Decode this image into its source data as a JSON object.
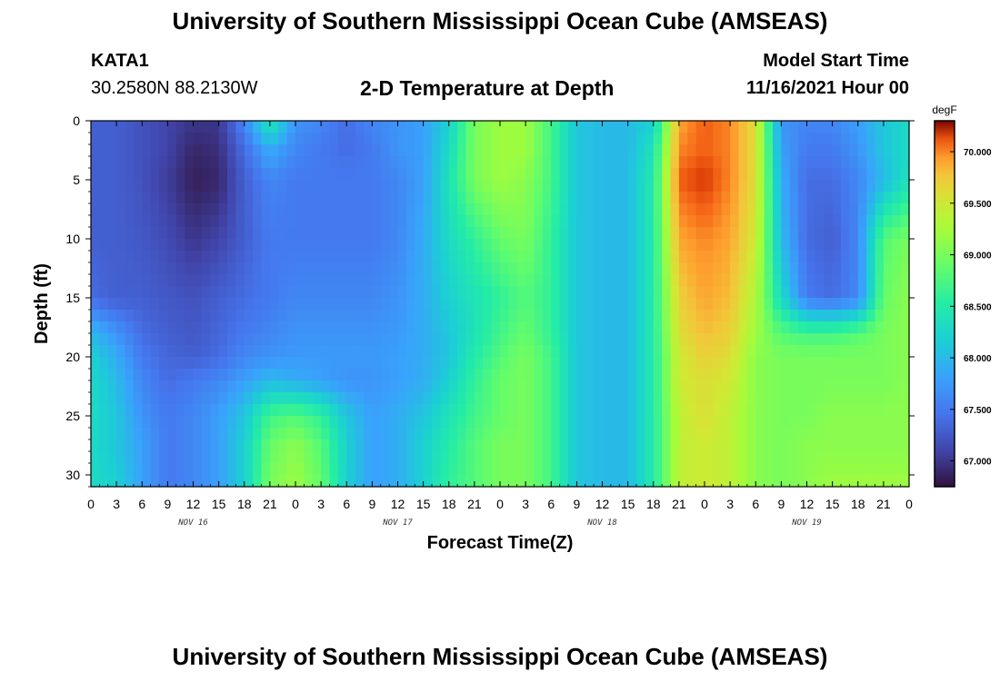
{
  "header": {
    "title": "University of Southern Mississippi Ocean Cube (AMSEAS)",
    "station": "KATA1",
    "coords": "30.2580N  88.2130W",
    "subtitle": "2-D Temperature at Depth",
    "model_start_label": "Model Start Time",
    "model_start_value": "11/16/2021 Hour 00"
  },
  "footer": {
    "title": "University of Southern Mississippi Ocean Cube (AMSEAS)"
  },
  "chart_data": {
    "type": "heatmap",
    "xlabel": "Forecast Time(Z)",
    "ylabel": "Depth (ft)",
    "x_range_hours": [
      0,
      96
    ],
    "x_tick_labels": [
      "0",
      "3",
      "6",
      "9",
      "12",
      "15",
      "18",
      "21",
      "0",
      "3",
      "6",
      "9",
      "12",
      "15",
      "18",
      "21",
      "0",
      "3",
      "6",
      "9",
      "12",
      "15",
      "18",
      "21",
      "0",
      "3",
      "6",
      "9",
      "12",
      "15",
      "18",
      "21",
      "0"
    ],
    "day_labels": [
      {
        "text": "NOV 16",
        "hour": 12
      },
      {
        "text": "NOV 17",
        "hour": 36
      },
      {
        "text": "NOV 18",
        "hour": 60
      },
      {
        "text": "NOV 19",
        "hour": 84
      }
    ],
    "ylim": [
      0,
      31
    ],
    "y_ticks": [
      0,
      5,
      10,
      15,
      20,
      25,
      30
    ],
    "y_tick_labels": [
      "0",
      "5",
      "10",
      "15",
      "20",
      "25",
      "30"
    ],
    "colorbar": {
      "unit": "degF",
      "range": [
        66.75,
        70.3
      ],
      "ticks": [
        67.0,
        67.5,
        68.0,
        68.5,
        69.0,
        69.5,
        70.0
      ],
      "tick_labels": [
        "67.000",
        "67.500",
        "68.000",
        "68.500",
        "69.000",
        "69.500",
        "70.000"
      ]
    },
    "depths_ft": [
      0,
      2.5,
      5,
      10,
      15,
      18,
      20,
      22,
      25,
      27.5,
      31
    ],
    "times_hours": [
      0,
      3,
      6,
      9,
      12,
      15,
      18,
      21,
      24,
      27,
      30,
      33,
      36,
      39,
      42,
      45,
      48,
      51,
      54,
      57,
      60,
      63,
      66,
      69,
      72,
      75,
      78,
      81,
      84,
      87,
      90,
      93,
      96
    ],
    "values_degF": [
      [
        67.3,
        67.3,
        67.2,
        67.1,
        67.0,
        67.0,
        67.6,
        68.5,
        67.7,
        67.6,
        67.4,
        67.6,
        67.7,
        67.8,
        68.2,
        69.0,
        69.2,
        69.2,
        68.7,
        68.1,
        68.0,
        68.0,
        68.2,
        69.9,
        70.1,
        70.0,
        69.6,
        67.7,
        67.6,
        67.6,
        67.8,
        68.1,
        68.3
      ],
      [
        67.3,
        67.3,
        67.2,
        67.1,
        66.9,
        66.95,
        67.4,
        67.9,
        67.6,
        67.5,
        67.4,
        67.5,
        67.7,
        67.8,
        68.3,
        69.0,
        69.2,
        69.2,
        68.7,
        68.1,
        68.0,
        68.0,
        68.4,
        70.0,
        70.1,
        70.0,
        69.6,
        67.8,
        67.5,
        67.5,
        67.7,
        68.1,
        68.3
      ],
      [
        67.3,
        67.3,
        67.2,
        67.05,
        66.85,
        66.9,
        67.3,
        67.6,
        67.5,
        67.5,
        67.5,
        67.5,
        67.6,
        67.8,
        68.4,
        69.0,
        69.2,
        69.1,
        68.7,
        68.1,
        68.0,
        68.0,
        68.5,
        70.1,
        70.2,
        70.0,
        69.6,
        67.9,
        67.4,
        67.4,
        67.6,
        68.0,
        68.4
      ],
      [
        67.3,
        67.3,
        67.25,
        67.15,
        67.0,
        67.1,
        67.3,
        67.5,
        67.5,
        67.5,
        67.5,
        67.5,
        67.6,
        67.9,
        68.3,
        68.6,
        68.9,
        69.0,
        68.6,
        68.1,
        68.0,
        68.0,
        68.5,
        69.9,
        70.0,
        69.9,
        69.5,
        68.0,
        67.4,
        67.3,
        67.6,
        68.8,
        69.0
      ],
      [
        67.4,
        67.3,
        67.3,
        67.25,
        67.2,
        67.3,
        67.4,
        67.5,
        67.6,
        67.6,
        67.6,
        67.6,
        67.7,
        67.9,
        68.2,
        68.4,
        68.6,
        68.8,
        68.6,
        68.1,
        68.0,
        68.0,
        68.5,
        69.7,
        69.9,
        69.8,
        69.3,
        68.3,
        67.5,
        67.4,
        67.6,
        68.9,
        69.1
      ],
      [
        68.0,
        67.7,
        67.4,
        67.3,
        67.25,
        67.35,
        67.5,
        67.6,
        67.7,
        67.7,
        67.7,
        67.7,
        67.75,
        67.9,
        68.1,
        68.4,
        68.7,
        68.9,
        68.6,
        68.1,
        68.0,
        68.0,
        68.5,
        69.6,
        69.8,
        69.7,
        69.2,
        68.8,
        68.7,
        68.7,
        68.8,
        69.0,
        69.1
      ],
      [
        68.2,
        67.9,
        67.5,
        67.35,
        67.3,
        67.4,
        67.6,
        67.7,
        67.75,
        67.75,
        67.75,
        67.75,
        67.8,
        67.9,
        68.1,
        68.5,
        68.8,
        69.0,
        68.7,
        68.1,
        68.0,
        68.0,
        68.5,
        69.5,
        69.7,
        69.6,
        69.1,
        69.0,
        69.0,
        69.0,
        69.0,
        69.0,
        69.1
      ],
      [
        68.3,
        68.0,
        67.6,
        67.4,
        67.5,
        67.6,
        67.8,
        68.0,
        67.9,
        67.8,
        67.7,
        67.7,
        67.8,
        67.9,
        68.2,
        68.6,
        68.9,
        69.0,
        68.7,
        68.1,
        68.0,
        68.0,
        68.5,
        69.5,
        69.6,
        69.5,
        69.1,
        69.0,
        69.0,
        69.0,
        69.0,
        69.0,
        69.1
      ],
      [
        68.3,
        68.1,
        67.7,
        67.5,
        67.6,
        67.8,
        68.1,
        68.7,
        68.8,
        68.6,
        68.1,
        67.8,
        67.9,
        68.1,
        68.4,
        68.7,
        68.9,
        69.0,
        68.7,
        68.1,
        68.0,
        68.0,
        68.5,
        69.4,
        69.6,
        69.4,
        69.1,
        69.0,
        69.0,
        69.1,
        69.1,
        69.1,
        69.1
      ],
      [
        68.3,
        68.1,
        67.8,
        67.5,
        67.6,
        67.8,
        68.2,
        68.9,
        69.1,
        68.8,
        68.2,
        67.8,
        67.9,
        68.2,
        68.5,
        68.8,
        69.0,
        69.0,
        68.7,
        68.1,
        68.0,
        68.0,
        68.5,
        69.4,
        69.5,
        69.4,
        69.1,
        69.0,
        69.1,
        69.1,
        69.1,
        69.1,
        69.1
      ],
      [
        68.3,
        68.2,
        67.8,
        67.5,
        67.6,
        67.8,
        68.2,
        69.0,
        69.2,
        68.9,
        68.2,
        67.8,
        67.9,
        68.2,
        68.6,
        68.8,
        69.0,
        69.0,
        68.7,
        68.1,
        68.0,
        68.0,
        68.5,
        69.4,
        69.5,
        69.4,
        69.1,
        69.0,
        69.1,
        69.2,
        69.2,
        69.2,
        69.2
      ]
    ]
  }
}
